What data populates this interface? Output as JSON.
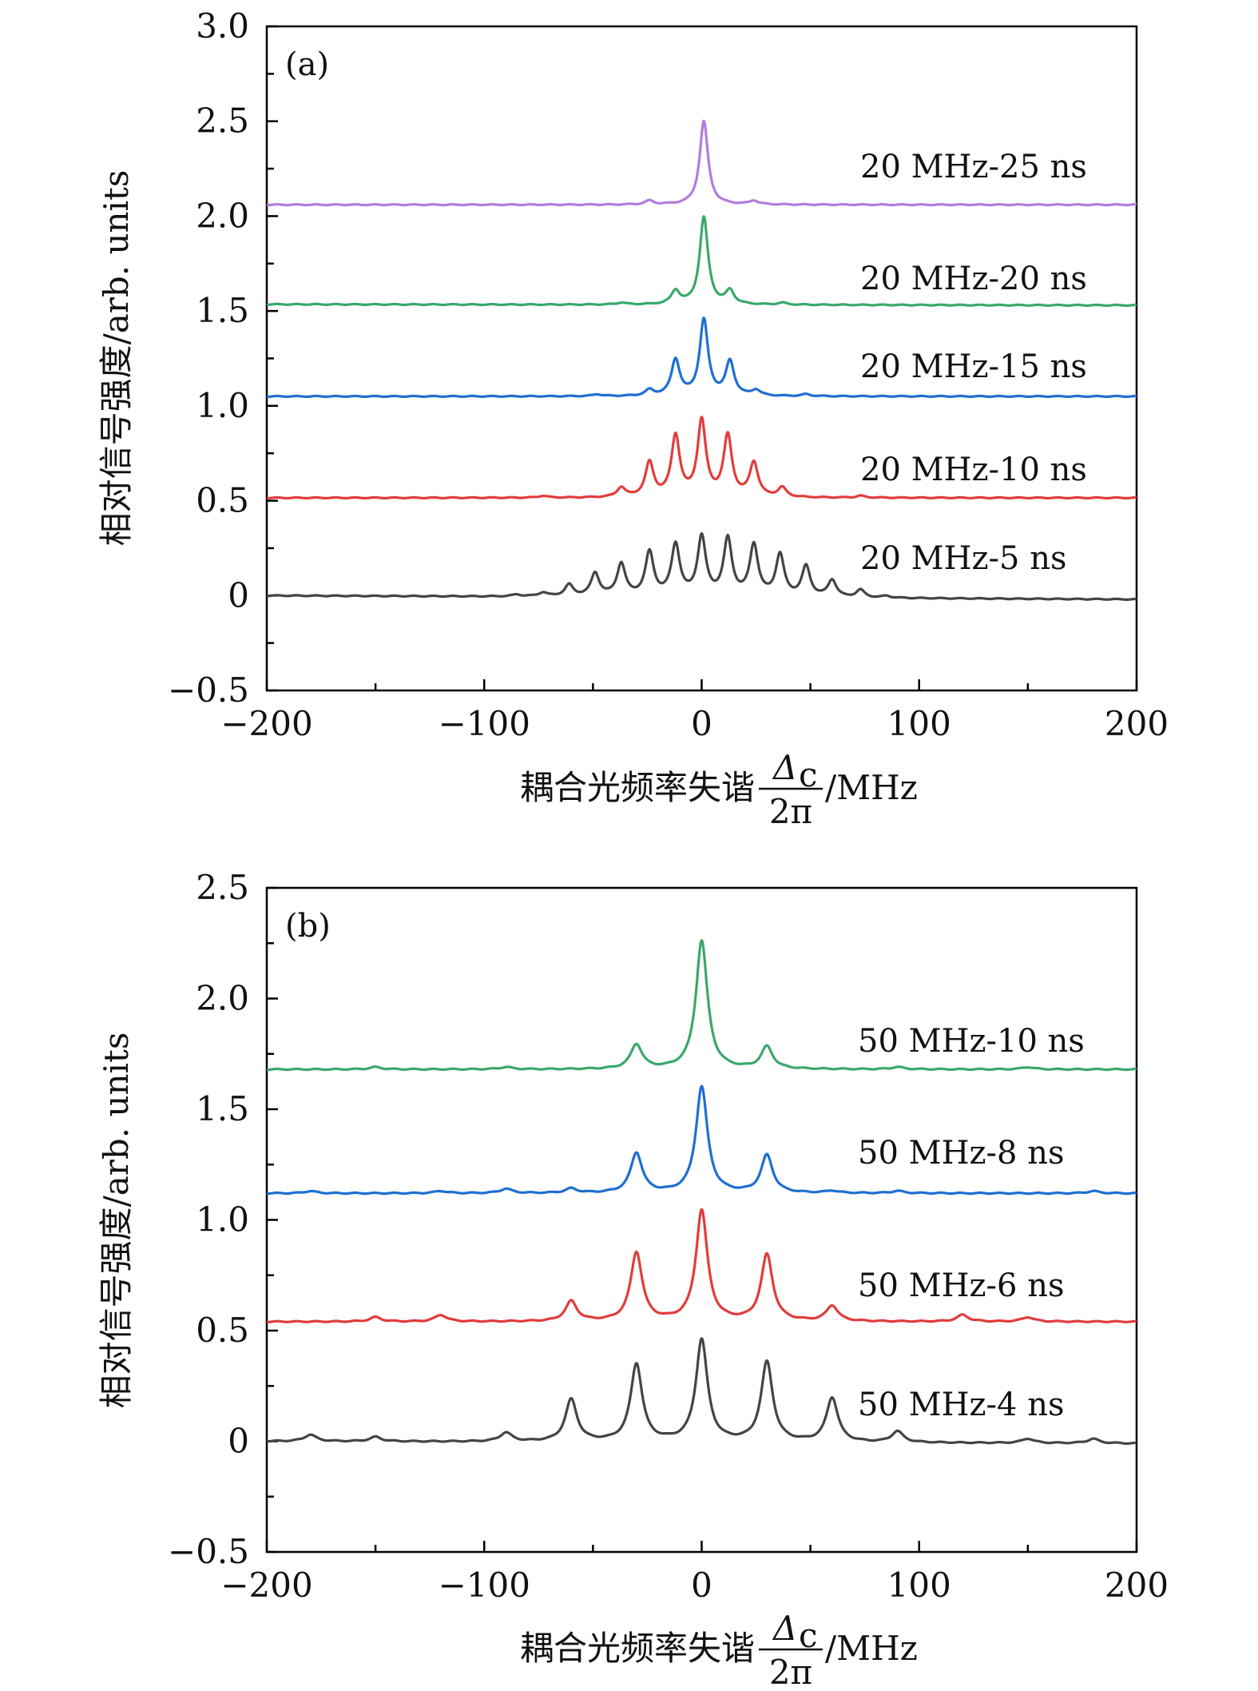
{
  "chart_data": [
    {
      "type": "line",
      "panel_label": "(a)",
      "xlabel_prefix": "耦合光频率失谐",
      "xlabel_num": "Δ",
      "xlabel_sub": "c",
      "xlabel_den": "2π",
      "xlabel_unit": "/MHz",
      "ylabel": "相对信号强度/arb. units",
      "xlim": [
        -200,
        200
      ],
      "ylim": [
        -0.5,
        3.0
      ],
      "xticks": [
        -200,
        -100,
        0,
        100,
        200
      ],
      "xtick_labels": [
        "−200",
        "−100",
        "0",
        "100",
        "200"
      ],
      "yticks": [
        -0.5,
        0,
        0.5,
        1.0,
        1.5,
        2.0,
        2.5,
        3.0
      ],
      "ytick_labels": [
        "−0.5",
        "0",
        "0.5",
        "1.0",
        "1.5",
        "2.0",
        "2.5",
        "3.0"
      ],
      "peak_width_mhz": 2.3,
      "series": [
        {
          "name": "20 MHz-25 ns",
          "color": "#b27cdc",
          "baseline": [
            2.06,
            2.06
          ],
          "peaks": [
            [
              -24,
              0.02
            ],
            [
              1,
              0.44
            ],
            [
              24,
              0.02
            ]
          ]
        },
        {
          "name": "20 MHz-20 ns",
          "color": "#3aa86b",
          "baseline": [
            1.535,
            1.53
          ],
          "peaks": [
            [
              -37,
              0.01
            ],
            [
              -12,
              0.07
            ],
            [
              1,
              0.46
            ],
            [
              13,
              0.07
            ],
            [
              37,
              0.01
            ]
          ]
        },
        {
          "name": "20 MHz-15 ns",
          "color": "#1f6fd1",
          "baseline": [
            1.05,
            1.05
          ],
          "peaks": [
            [
              -48,
              0.01
            ],
            [
              -24,
              0.03
            ],
            [
              -12,
              0.19
            ],
            [
              1,
              0.4
            ],
            [
              13,
              0.18
            ],
            [
              25,
              0.03
            ],
            [
              48,
              0.01
            ]
          ]
        },
        {
          "name": "20 MHz-10 ns",
          "color": "#e23c3c",
          "baseline": [
            0.515,
            0.515
          ],
          "peaks": [
            [
              -73,
              0.01
            ],
            [
              -37,
              0.05
            ],
            [
              -24,
              0.18
            ],
            [
              -12,
              0.32
            ],
            [
              0,
              0.4
            ],
            [
              12,
              0.32
            ],
            [
              24,
              0.18
            ],
            [
              37,
              0.05
            ],
            [
              73,
              0.01
            ]
          ]
        },
        {
          "name": "20 MHz-5 ns",
          "color": "#444444",
          "baseline": [
            0.0,
            -0.02
          ],
          "peaks": [
            [
              -85,
              0.01
            ],
            [
              -73,
              0.02
            ],
            [
              -61,
              0.06
            ],
            [
              -49,
              0.12
            ],
            [
              -37,
              0.17
            ],
            [
              -24,
              0.23
            ],
            [
              -12,
              0.27
            ],
            [
              0,
              0.31
            ],
            [
              12,
              0.3
            ],
            [
              24,
              0.27
            ],
            [
              36,
              0.22
            ],
            [
              48,
              0.16
            ],
            [
              60,
              0.09
            ],
            [
              73,
              0.04
            ],
            [
              85,
              0.01
            ]
          ]
        }
      ]
    },
    {
      "type": "line",
      "panel_label": "(b)",
      "xlabel_prefix": "耦合光频率失谐",
      "xlabel_num": "Δ",
      "xlabel_sub": "c",
      "xlabel_den": "2π",
      "xlabel_unit": "/MHz",
      "ylabel": "相对信号强度/arb. units",
      "xlim": [
        -200,
        200
      ],
      "ylim": [
        -0.5,
        2.5
      ],
      "xticks": [
        -200,
        -100,
        0,
        100,
        200
      ],
      "xtick_labels": [
        "−200",
        "−100",
        "0",
        "100",
        "200"
      ],
      "yticks": [
        -0.5,
        0,
        0.5,
        1.0,
        1.5,
        2.0,
        2.5
      ],
      "ytick_labels": [
        "−0.5",
        "0",
        "0.5",
        "1.0",
        "1.5",
        "2.0",
        "2.5"
      ],
      "peak_width_mhz": 3.2,
      "series": [
        {
          "name": "50 MHz-10 ns",
          "color": "#3aa86b",
          "baseline": [
            1.68,
            1.68
          ],
          "peaks": [
            [
              -150,
              0.01
            ],
            [
              -90,
              0.01
            ],
            [
              -30,
              0.11
            ],
            [
              0,
              0.58
            ],
            [
              30,
              0.1
            ],
            [
              90,
              0.01
            ],
            [
              150,
              0.01
            ]
          ]
        },
        {
          "name": "50 MHz-8 ns",
          "color": "#1f6fd1",
          "baseline": [
            1.12,
            1.12
          ],
          "peaks": [
            [
              -180,
              0.01
            ],
            [
              -120,
              0.01
            ],
            [
              -90,
              0.02
            ],
            [
              -60,
              0.02
            ],
            [
              -30,
              0.18
            ],
            [
              0,
              0.48
            ],
            [
              30,
              0.17
            ],
            [
              60,
              0.01
            ],
            [
              90,
              0.01
            ],
            [
              180,
              0.01
            ]
          ]
        },
        {
          "name": "50 MHz-6 ns",
          "color": "#e23c3c",
          "baseline": [
            0.54,
            0.54
          ],
          "peaks": [
            [
              -150,
              0.02
            ],
            [
              -120,
              0.03
            ],
            [
              -60,
              0.09
            ],
            [
              -30,
              0.31
            ],
            [
              0,
              0.5
            ],
            [
              30,
              0.3
            ],
            [
              60,
              0.07
            ],
            [
              120,
              0.03
            ],
            [
              150,
              0.02
            ]
          ]
        },
        {
          "name": "50 MHz-4 ns",
          "color": "#444444",
          "baseline": [
            0.0,
            -0.01
          ],
          "peaks": [
            [
              -180,
              0.03
            ],
            [
              -150,
              0.02
            ],
            [
              -90,
              0.04
            ],
            [
              -60,
              0.19
            ],
            [
              -30,
              0.35
            ],
            [
              0,
              0.46
            ],
            [
              30,
              0.36
            ],
            [
              60,
              0.2
            ],
            [
              90,
              0.05
            ],
            [
              150,
              0.02
            ],
            [
              180,
              0.02
            ]
          ]
        }
      ]
    }
  ]
}
